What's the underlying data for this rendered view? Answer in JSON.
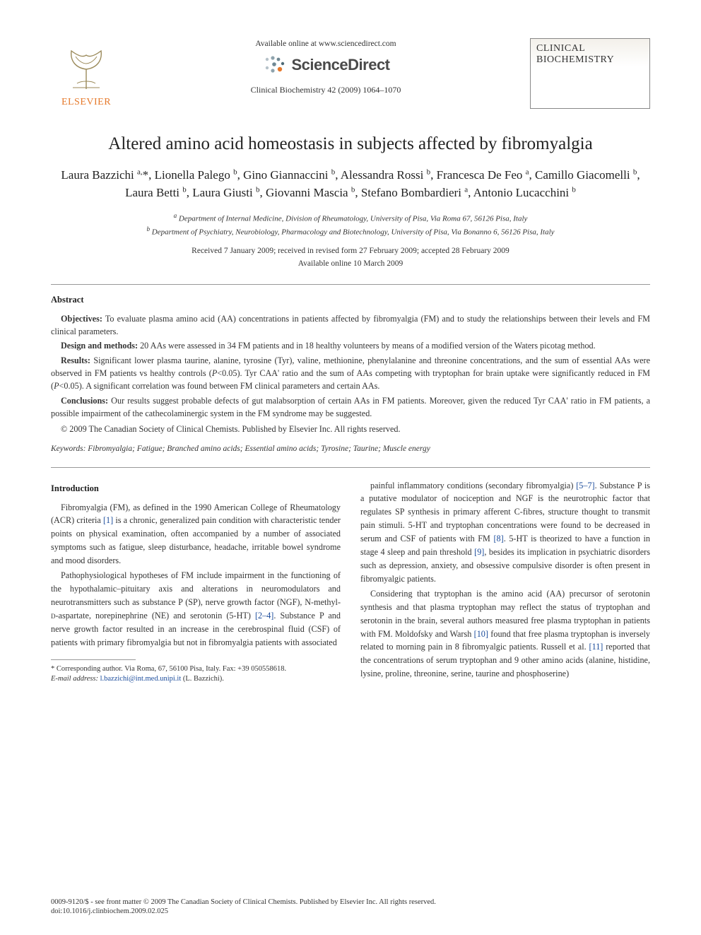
{
  "header": {
    "publisher_label": "ELSEVIER",
    "available_text": "Available online at www.sciencedirect.com",
    "sd_label": "ScienceDirect",
    "citation": "Clinical Biochemistry 42 (2009) 1064–1070",
    "journal_line1": "CLINICAL",
    "journal_line2": "BIOCHEMISTRY",
    "colors": {
      "elsevier_orange": "#e6792b",
      "sd_gray": "#4a4a4a",
      "link_blue": "#1a4b9b"
    }
  },
  "title": "Altered amino acid homeostasis in subjects affected by fibromyalgia",
  "authors_html": "Laura Bazzichi <sup>a,</sup>*, Lionella Palego <sup>b</sup>, Gino Giannaccini <sup>b</sup>, Alessandra Rossi <sup>b</sup>, Francesca De Feo <sup>a</sup>, Camillo Giacomelli <sup>b</sup>, Laura Betti <sup>b</sup>, Laura Giusti <sup>b</sup>, Giovanni Mascia <sup>b</sup>, Stefano Bombardieri <sup>a</sup>, Antonio Lucacchini <sup>b</sup>",
  "affiliations": {
    "a": "Department of Internal Medicine, Division of Rheumatology, University of Pisa, Via Roma 67, 56126 Pisa, Italy",
    "b": "Department of Psychiatry, Neurobiology, Pharmacology and Biotechnology, University of Pisa, Via Bonanno 6, 56126 Pisa, Italy"
  },
  "dates": {
    "line1": "Received 7 January 2009; received in revised form 27 February 2009; accepted 28 February 2009",
    "line2": "Available online 10 March 2009"
  },
  "abstract": {
    "heading": "Abstract",
    "objectives_label": "Objectives:",
    "objectives": "To evaluate plasma amino acid (AA) concentrations in patients affected by fibromyalgia (FM) and to study the relationships between their levels and FM clinical parameters.",
    "design_label": "Design and methods:",
    "design": "20 AAs were assessed in 34 FM patients and in 18 healthy volunteers by means of a modified version of the Waters picotag method.",
    "results_label": "Results:",
    "results": "Significant lower plasma taurine, alanine, tyrosine (Tyr), valine, methionine, phenylalanine and threonine concentrations, and the sum of essential AAs were observed in FM patients vs healthy controls (P<0.05). Tyr CAA' ratio and the sum of AAs competing with tryptophan for brain uptake were significantly reduced in FM (P<0.05). A significant correlation was found between FM clinical parameters and certain AAs.",
    "conclusions_label": "Conclusions:",
    "conclusions": "Our results suggest probable defects of gut malabsorption of certain AAs in FM patients. Moreover, given the reduced Tyr CAA' ratio in FM patients, a possible impairment of the cathecolaminergic system in the FM syndrome may be suggested.",
    "copyright": "© 2009 The Canadian Society of Clinical Chemists. Published by Elsevier Inc. All rights reserved."
  },
  "keywords_label": "Keywords:",
  "keywords": "Fibromyalgia; Fatigue; Branched amino acids; Essential amino acids; Tyrosine; Taurine; Muscle energy",
  "intro_heading": "Introduction",
  "intro": {
    "p1_pre": "Fibromyalgia (FM), as defined in the 1990 American College of Rheumatology (ACR) criteria ",
    "p1_ref": "[1]",
    "p1_post": " is a chronic, generalized pain condition with characteristic tender points on physical examination, often accompanied by a number of associated symptoms such as fatigue, sleep disturbance, headache, irritable bowel syndrome and mood disorders.",
    "p2_pre": "Pathophysiological hypotheses of FM include impairment in the functioning of the hypothalamic–pituitary axis and alterations in neuromodulators and neurotransmitters such as substance P (SP), nerve growth factor (NGF), N-methyl-D-aspartate, norepinephrine (NE) and serotonin (5-HT) ",
    "p2_ref": "[2–4]",
    "p2_post": ". Substance P and nerve growth factor resulted in an increase in the cerebrospinal fluid (CSF) of patients with primary fibromyalgia but not in fibromyalgia patients with associated",
    "p3_pre": "painful inflammatory conditions (secondary fibromyalgia) ",
    "p3_ref": "[5–7]",
    "p3_mid1": ". Substance P is a putative modulator of nociception and NGF is the neurotrophic factor that regulates SP synthesis in primary afferent C-fibres, structure thought to transmit pain stimuli. 5-HT and tryptophan concentrations were found to be decreased in serum and CSF of patients with FM ",
    "p3_ref2": "[8]",
    "p3_mid2": ". 5-HT is theorized to have a function in stage 4 sleep and pain threshold ",
    "p3_ref3": "[9]",
    "p3_post": ", besides its implication in psychiatric disorders such as depression, anxiety, and obsessive compulsive disorder is often present in fibromyalgic patients.",
    "p4_pre": "Considering that tryptophan is the amino acid (AA) precursor of serotonin synthesis and that plasma tryptophan may reflect the status of tryptophan and serotonin in the brain, several authors measured free plasma tryptophan in patients with FM. Moldofsky and Warsh ",
    "p4_ref": "[10]",
    "p4_mid": " found that free plasma tryptophan is inversely related to morning pain in 8 fibromyalgic patients. Russell et al. ",
    "p4_ref2": "[11]",
    "p4_post": " reported that the concentrations of serum tryptophan and 9 other amino acids (alanine, histidine, lysine, proline, threonine, serine, taurine and phosphoserine)"
  },
  "footnote": {
    "corr": "* Corresponding author. Via Roma, 67, 56100 Pisa, Italy. Fax: +39 050558618.",
    "email_label": "E-mail address:",
    "email": "l.bazzichi@int.med.unipi.it",
    "email_post": "(L. Bazzichi)."
  },
  "footer": {
    "line1": "0009-9120/$ - see front matter © 2009 The Canadian Society of Clinical Chemists. Published by Elsevier Inc. All rights reserved.",
    "doi": "doi:10.1016/j.clinbiochem.2009.02.025"
  }
}
